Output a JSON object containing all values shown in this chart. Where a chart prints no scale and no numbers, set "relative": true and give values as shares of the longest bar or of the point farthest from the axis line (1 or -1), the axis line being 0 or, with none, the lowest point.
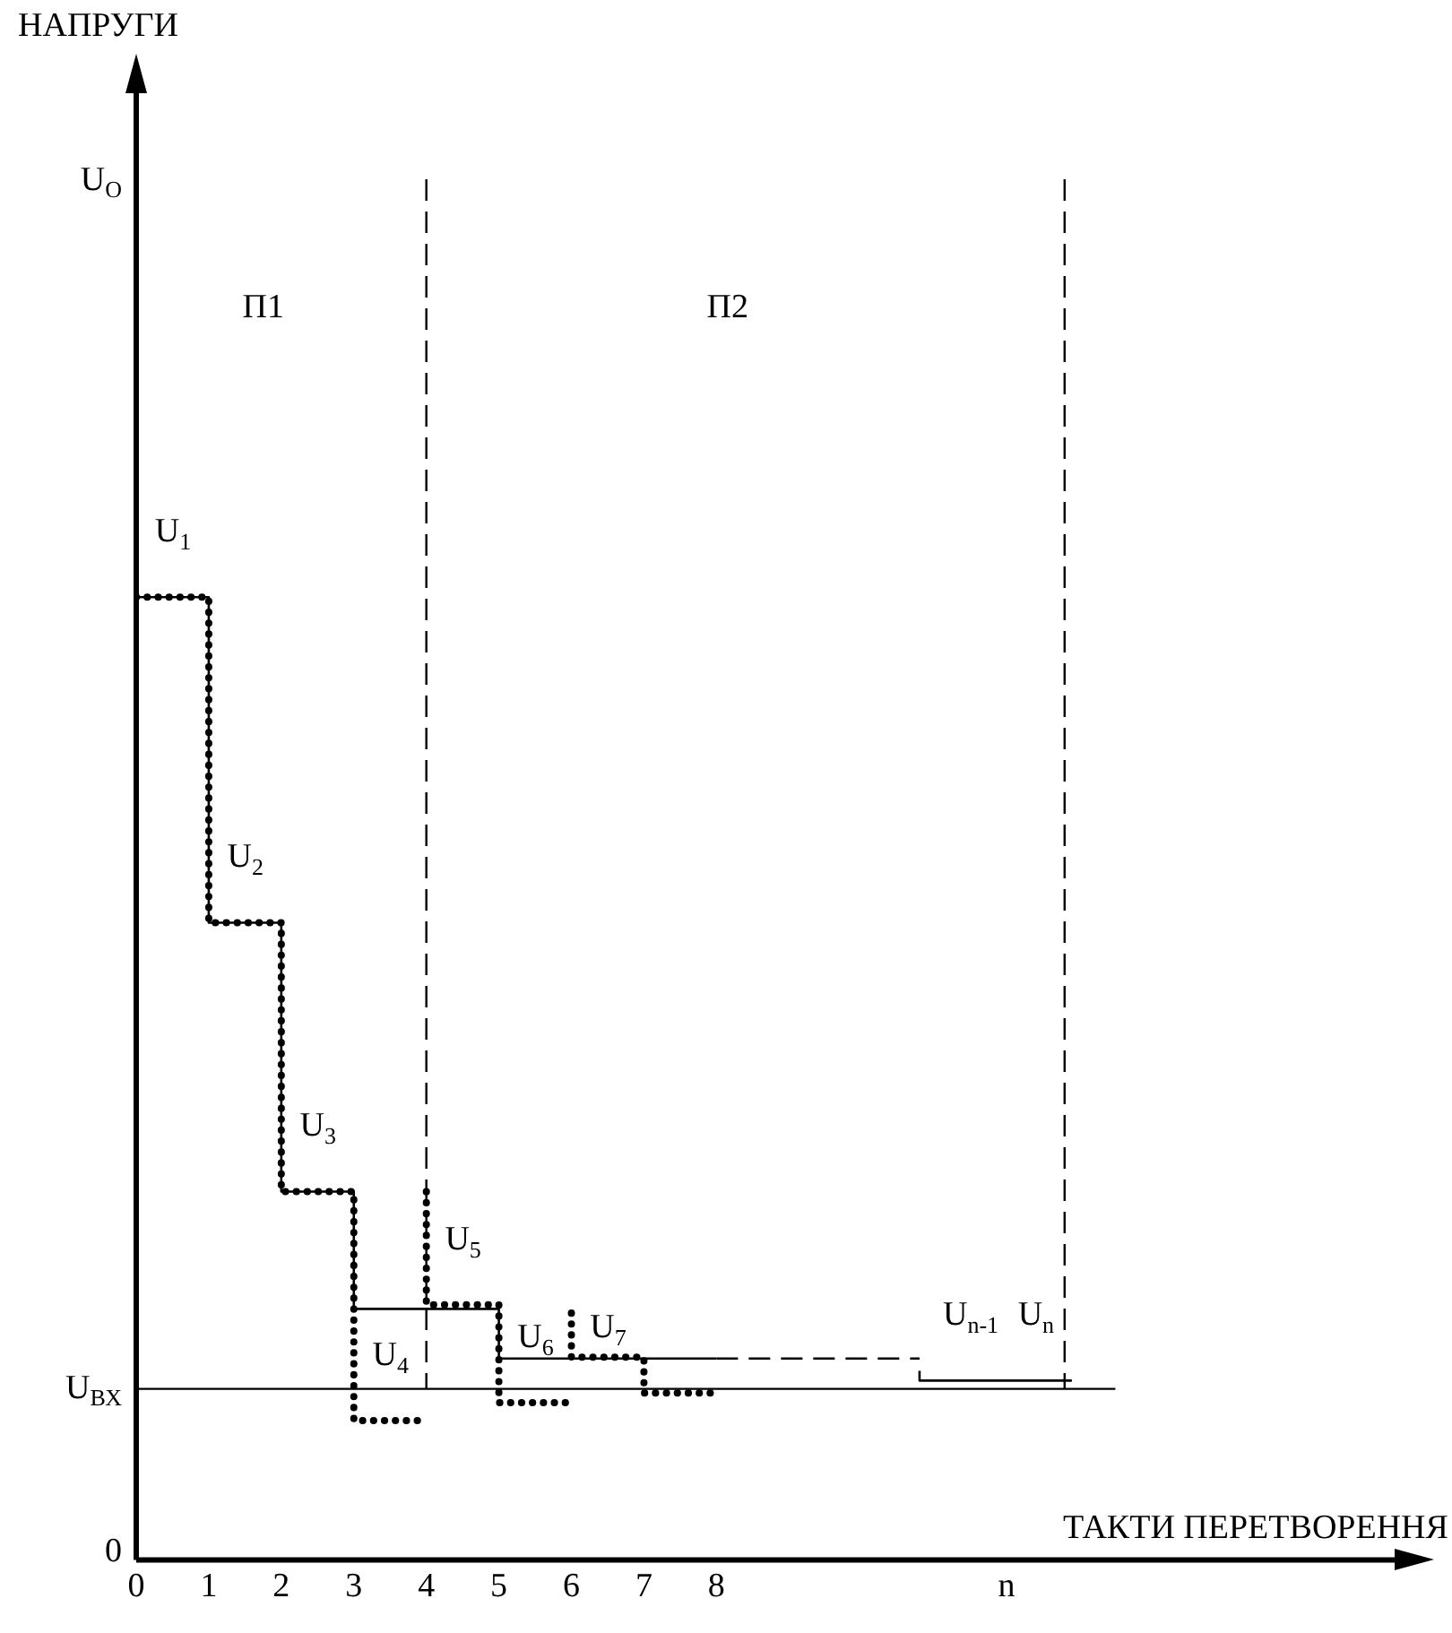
{
  "chart_data": {
    "type": "step",
    "relative": true,
    "xlabel": "ТАКТИ ПЕРЕТВОРЕННЯ",
    "ylabel": "НАПРУГИ",
    "xlim": [
      0,
      17.4
    ],
    "xticks": [
      0,
      1,
      2,
      3,
      4,
      5,
      6,
      7,
      8,
      {
        "value": 12,
        "label": "n"
      }
    ],
    "grid": false,
    "legend": false,
    "series": [
      {
        "color": "#000000",
        "line_style": "solid",
        "x": [
          0,
          1,
          2,
          3,
          5,
          7,
          8
        ],
        "values": [
          1,
          0.698,
          0.462,
          0.267,
          0.182,
          0.146,
          0.146
        ]
      },
      {
        "type": "line",
        "color": "#000000",
        "line_style": "dashed",
        "x": [
          8,
          10.8
        ],
        "values": [
          0.146,
          0.146
        ]
      },
      {
        "color": "#000000",
        "line_style": "solid",
        "x": [
          10.8,
          12,
          12.9
        ],
        "values": [
          0.137,
          0.13,
          0.13
        ]
      },
      {
        "type": "line",
        "color": "#000000",
        "line_style": "dotted",
        "x": [
          0,
          1,
          1,
          2,
          2,
          3,
          3,
          4
        ],
        "values": [
          0.698,
          0.698,
          0.462,
          0.462,
          0.267,
          0.267,
          0.101,
          0.101
        ]
      },
      {
        "type": "line",
        "color": "#000000",
        "line_style": "dotted",
        "x": [
          4,
          4,
          5,
          5,
          6
        ],
        "values": [
          0.267,
          0.185,
          0.185,
          0.114,
          0.114
        ]
      },
      {
        "type": "line",
        "color": "#000000",
        "line_style": "dotted",
        "x": [
          6,
          6,
          7,
          7,
          8
        ],
        "values": [
          0.179,
          0.147,
          0.147,
          0.121,
          0.121
        ]
      }
    ],
    "ref_lines": [
      {
        "axis": "x",
        "value": 4,
        "line_style": "dashed"
      },
      {
        "axis": "x",
        "value": 12.8,
        "line_style": "dashed"
      },
      {
        "axis": "y",
        "value": 0.124,
        "label": "U$_{ВХ}$",
        "line_style": "solid"
      }
    ],
    "annotations": [
      {
        "text": "U$_{O}$",
        "x": 0,
        "y": 1
      },
      "0",
      "П1",
      "П2",
      {
        "text": "U$_{1}$",
        "x": 1,
        "y": 0.698
      },
      {
        "text": "U$_{2}$",
        "x": 2,
        "y": 0.462
      },
      {
        "text": "U$_{3}$",
        "x": 3,
        "y": 0.267
      },
      {
        "text": "U$_{4}$",
        "x": 4,
        "y": 0.101
      },
      {
        "text": "U$_{5}$",
        "x": 5,
        "y": 0.185
      },
      {
        "text": "U$_{6}$",
        "x": 6,
        "y": 0.114
      },
      {
        "text": "U$_{7}$",
        "x": 7,
        "y": 0.121
      },
      {
        "text": "U$_{n-1}$",
        "x": 12,
        "y": 0.13
      },
      {
        "text": "U$_{n}$",
        "x": 12.9,
        "y": 0.13
      }
    ]
  }
}
